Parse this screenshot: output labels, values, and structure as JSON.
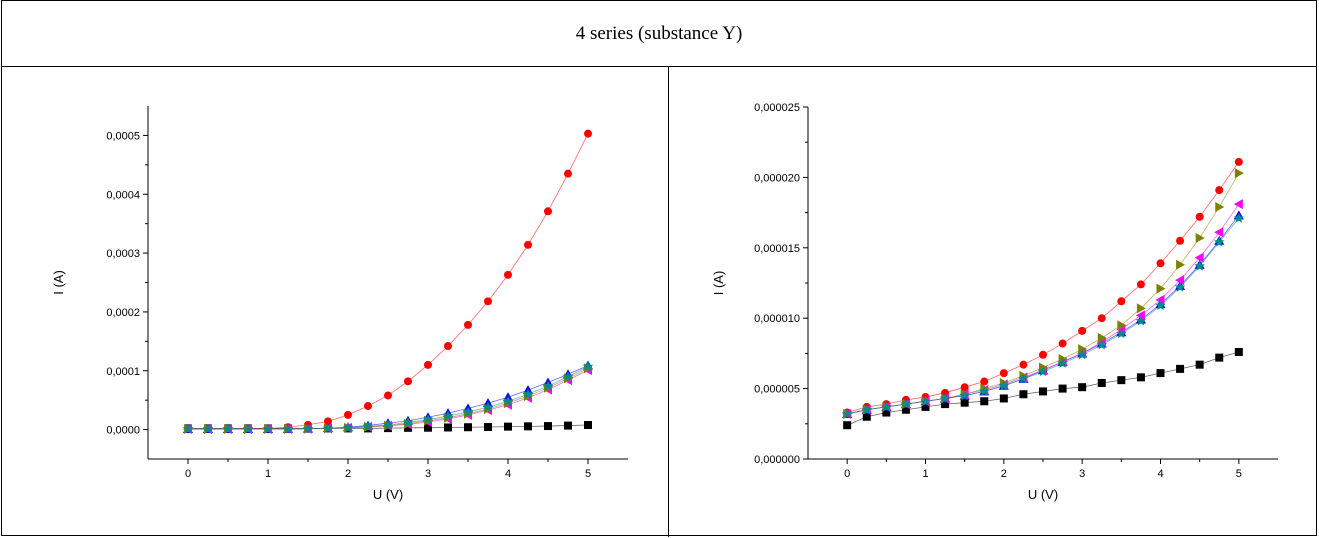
{
  "table": {
    "header": "4 series (substance Y)"
  },
  "chart_data": [
    {
      "type": "line",
      "xlabel": "U (V)",
      "ylabel": "I (A)",
      "xlim": [
        -0.5,
        5.5
      ],
      "ylim": [
        -5e-05,
        0.00055
      ],
      "x_ticks": [
        "0",
        "1",
        "2",
        "3",
        "4",
        "5"
      ],
      "y_ticks": [
        "0,0000",
        "0,0001",
        "0,0002",
        "0,0003",
        "0,0004",
        "0,0005"
      ],
      "x": [
        0,
        0.25,
        0.5,
        0.75,
        1,
        1.25,
        1.5,
        1.75,
        2,
        2.25,
        2.5,
        2.75,
        3,
        3.25,
        3.5,
        3.75,
        4,
        4.25,
        4.5,
        4.75,
        5
      ],
      "series": [
        {
          "marker": "square",
          "color": "#000000",
          "values": [
            2e-06,
            2e-06,
            2e-06,
            2e-06,
            2e-06,
            2e-06,
            2e-06,
            2e-06,
            2e-06,
            2e-06,
            2.5e-06,
            3e-06,
            3.2e-06,
            3.6e-06,
            4e-06,
            4.4e-06,
            5e-06,
            5.5e-06,
            6e-06,
            6.8e-06,
            7.8e-06
          ]
        },
        {
          "marker": "circle",
          "color": "#ff0000",
          "values": [
            1e-06,
            1e-06,
            1e-06,
            1.5e-06,
            2e-06,
            4e-06,
            8e-06,
            1.4e-05,
            2.5e-05,
            4e-05,
            5.8e-05,
            8.2e-05,
            0.00011,
            0.000142,
            0.000178,
            0.000218,
            0.000263,
            0.000314,
            0.000371,
            0.000435,
            0.000503
          ]
        },
        {
          "marker": "triangle-up",
          "color": "#0000ff",
          "values": [
            1e-06,
            1e-06,
            1e-06,
            1e-06,
            1e-06,
            1.2e-06,
            1.6e-06,
            2.5e-06,
            4e-06,
            7e-06,
            1.1e-05,
            1.5e-05,
            2.1e-05,
            2.8e-05,
            3.6e-05,
            4.5e-05,
            5.5e-05,
            6.7e-05,
            8e-05,
            9.4e-05,
            0.000109
          ]
        },
        {
          "marker": "triangle-left",
          "color": "#ff00ff",
          "values": [
            1e-06,
            1e-06,
            1e-06,
            1e-06,
            1e-06,
            1.1e-06,
            1.4e-06,
            2e-06,
            3e-06,
            4.5e-06,
            6.5e-06,
            9e-06,
            1.3e-05,
            1.8e-05,
            2.5e-05,
            3.3e-05,
            4.2e-05,
            5.4e-05,
            6.8e-05,
            8.4e-05,
            0.000101
          ]
        },
        {
          "marker": "triangle-right",
          "color": "#808000",
          "values": [
            1e-06,
            1e-06,
            1e-06,
            1e-06,
            1e-06,
            1.1e-06,
            1.4e-06,
            2e-06,
            3e-06,
            4.5e-06,
            6.8e-06,
            1e-05,
            1.5e-05,
            2e-05,
            2.7e-05,
            3.5e-05,
            4.5e-05,
            5.7e-05,
            7.1e-05,
            8.7e-05,
            0.000104
          ]
        },
        {
          "marker": "star",
          "color": "#008b8b",
          "values": [
            1e-06,
            1e-06,
            1e-06,
            1e-06,
            1e-06,
            1.1e-06,
            1.5e-06,
            2.2e-06,
            3.5e-06,
            5.5e-06,
            8e-06,
            1.2e-05,
            1.7e-05,
            2.3e-05,
            3e-05,
            3.8e-05,
            4.8e-05,
            6e-05,
            7.4e-05,
            9e-05,
            0.000107
          ]
        }
      ]
    },
    {
      "type": "line",
      "xlabel": "U (V)",
      "ylabel": "I (A)",
      "xlim": [
        -0.5,
        5.5
      ],
      "ylim": [
        0,
        2.5e-05
      ],
      "x_ticks": [
        "0",
        "1",
        "2",
        "3",
        "4",
        "5"
      ],
      "y_ticks": [
        "0,000000",
        "0,000005",
        "0,000010",
        "0,000015",
        "0,000020",
        "0,000025"
      ],
      "x": [
        0,
        0.25,
        0.5,
        0.75,
        1,
        1.25,
        1.5,
        1.75,
        2,
        2.25,
        2.5,
        2.75,
        3,
        3.25,
        3.5,
        3.75,
        4,
        4.25,
        4.5,
        4.75,
        5
      ],
      "series": [
        {
          "marker": "square",
          "color": "#000000",
          "values": [
            2.4e-06,
            3e-06,
            3.3e-06,
            3.5e-06,
            3.7e-06,
            3.9e-06,
            4e-06,
            4.1e-06,
            4.3e-06,
            4.6e-06,
            4.8e-06,
            5e-06,
            5.1e-06,
            5.4e-06,
            5.6e-06,
            5.8e-06,
            6.1e-06,
            6.4e-06,
            6.7e-06,
            7.2e-06,
            7.6e-06
          ]
        },
        {
          "marker": "circle",
          "color": "#ff0000",
          "values": [
            3.3e-06,
            3.7e-06,
            3.9e-06,
            4.2e-06,
            4.4e-06,
            4.7e-06,
            5.1e-06,
            5.5e-06,
            6.1e-06,
            6.7e-06,
            7.4e-06,
            8.2e-06,
            9.1e-06,
            1e-05,
            1.12e-05,
            1.24e-05,
            1.39e-05,
            1.55e-05,
            1.72e-05,
            1.91e-05,
            2.11e-05
          ]
        },
        {
          "marker": "triangle-up",
          "color": "#0000ff",
          "values": [
            3.2e-06,
            3.5e-06,
            3.7e-06,
            3.9e-06,
            4.1e-06,
            4.3e-06,
            4.5e-06,
            4.8e-06,
            5.2e-06,
            5.7e-06,
            6.3e-06,
            6.9e-06,
            7.5e-06,
            8.2e-06,
            9e-06,
            9.9e-06,
            1.1e-05,
            1.23e-05,
            1.38e-05,
            1.55e-05,
            1.73e-05
          ]
        },
        {
          "marker": "triangle-left",
          "color": "#ff00ff",
          "values": [
            3.2e-06,
            3.5e-06,
            3.7e-06,
            3.9e-06,
            4.1e-06,
            4.3e-06,
            4.6e-06,
            4.9e-06,
            5.3e-06,
            5.8e-06,
            6.3e-06,
            6.9e-06,
            7.5e-06,
            8.3e-06,
            9.2e-06,
            1.02e-05,
            1.13e-05,
            1.27e-05,
            1.43e-05,
            1.61e-05,
            1.81e-05
          ]
        },
        {
          "marker": "triangle-right",
          "color": "#808000",
          "values": [
            3.2e-06,
            3.5e-06,
            3.7e-06,
            3.9e-06,
            4.1e-06,
            4.3e-06,
            4.6e-06,
            5e-06,
            5.4e-06,
            5.9e-06,
            6.5e-06,
            7.1e-06,
            7.8e-06,
            8.6e-06,
            9.5e-06,
            1.07e-05,
            1.21e-05,
            1.38e-05,
            1.57e-05,
            1.79e-05,
            2.03e-05
          ]
        },
        {
          "marker": "star",
          "color": "#008b8b",
          "values": [
            3.2e-06,
            3.5e-06,
            3.7e-06,
            3.9e-06,
            4.1e-06,
            4.3e-06,
            4.5e-06,
            4.8e-06,
            5.2e-06,
            5.7e-06,
            6.2e-06,
            6.8e-06,
            7.4e-06,
            8.1e-06,
            8.9e-06,
            9.8e-06,
            1.09e-05,
            1.22e-05,
            1.37e-05,
            1.54e-05,
            1.71e-05
          ]
        }
      ]
    }
  ]
}
